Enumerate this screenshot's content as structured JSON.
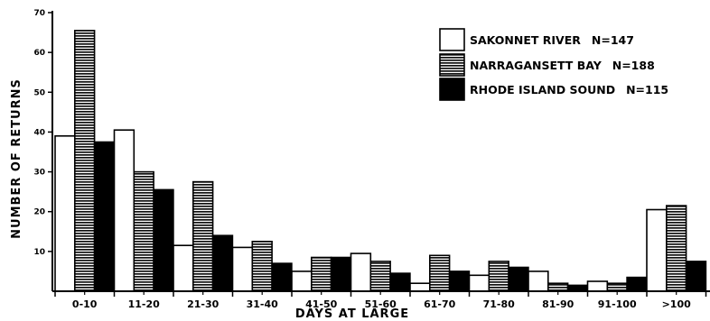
{
  "chart_data": {
    "type": "bar",
    "xlabel": "DAYS AT LARGE",
    "ylabel": "NUMBER OF RETURNS",
    "ylim": [
      0,
      70
    ],
    "yticks": [
      "10",
      "20",
      "30",
      "40",
      "50",
      "60",
      "70"
    ],
    "categories": [
      "0-10",
      "11-20",
      "21-30",
      "31-40",
      "41-50",
      "51-60",
      "61-70",
      "71-80",
      "81-90",
      "91-100",
      ">100"
    ],
    "series": [
      {
        "name": "SAKONNET RIVER",
        "n_label": "N=147",
        "fill": "white",
        "values": [
          39,
          40.5,
          11.5,
          11,
          5,
          9.5,
          2,
          4,
          5,
          2.5,
          20.5
        ]
      },
      {
        "name": "NARRAGANSETT BAY",
        "n_label": "N=188",
        "fill": "hatch",
        "values": [
          65.5,
          30,
          27.5,
          12.5,
          8.5,
          7.5,
          9,
          7.5,
          2,
          2,
          21.5
        ]
      },
      {
        "name": "RHODE ISLAND SOUND",
        "n_label": "N=115",
        "fill": "black",
        "values": [
          37.5,
          25.5,
          14,
          7,
          8.5,
          4.5,
          5,
          6,
          1.5,
          3.5,
          7.5
        ]
      }
    ],
    "legend_position": "top-right",
    "grid": false
  }
}
